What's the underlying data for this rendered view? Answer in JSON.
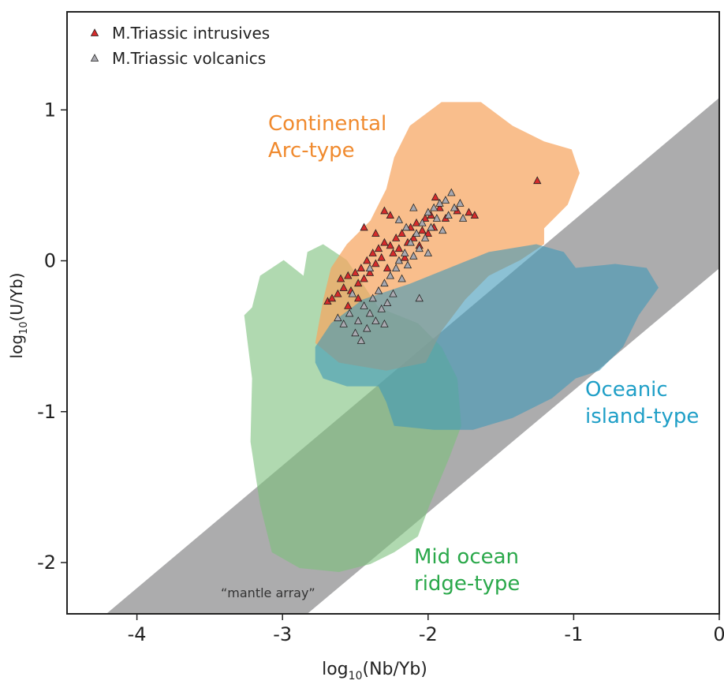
{
  "chart_data": {
    "type": "scatter",
    "x_label": [
      "log",
      "10",
      "(Nb/Yb)"
    ],
    "y_label": [
      "log",
      "10",
      "(U/Yb)"
    ],
    "xlim": [
      -4.48,
      0
    ],
    "ylim": [
      -2.34,
      1.65
    ],
    "xticks": [
      -4,
      -3,
      -2,
      -1,
      0
    ],
    "yticks": [
      -2,
      -1,
      0,
      1
    ],
    "legend": "upper left",
    "regions": [
      {
        "label": [
          "“mantle array”"
        ],
        "color": "#9d9d9f",
        "label_color": "#333333",
        "x": [
          -4.21,
          -2.83,
          0,
          0
        ],
        "y": [
          -2.34,
          -2.34,
          -0.05,
          1.08
        ]
      },
      {
        "label": [
          "Mid ocean",
          "ridge-type"
        ],
        "color": "#7cc07b",
        "label_color": "#2aa84a",
        "x": [
          -3.209,
          -3.154,
          -2.992,
          -2.856,
          -2.829,
          -2.721,
          -2.558,
          -2.341,
          -2.07,
          -1.908,
          -1.799,
          -1.772,
          -1.854,
          -1.989,
          -2.07,
          -2.233,
          -2.396,
          -2.612,
          -2.883,
          -3.073,
          -3.154,
          -3.22,
          -3.209,
          -3.236,
          -3.263
        ],
        "y": [
          -0.309,
          -0.099,
          0.005,
          -0.099,
          0.058,
          0.11,
          0.005,
          -0.309,
          -0.414,
          -0.571,
          -0.78,
          -1.094,
          -1.304,
          -1.618,
          -1.827,
          -1.932,
          -2.01,
          -2.063,
          -2.037,
          -1.932,
          -1.618,
          -1.199,
          -0.78,
          -0.571,
          -0.361
        ]
      },
      {
        "label": [
          "Continental",
          "Arc-type"
        ],
        "color": "#f6a55f",
        "label_color": "#f08a2e",
        "x": [
          -2.775,
          -2.72,
          -2.667,
          -2.558,
          -2.396,
          -2.287,
          -2.233,
          -2.125,
          -1.908,
          -1.637,
          -1.42,
          -1.203,
          -1.014,
          -0.959,
          -1.041,
          -1.203,
          -1.203,
          -1.366,
          -1.583,
          -1.745,
          -1.908,
          -2.016,
          -2.287,
          -2.612
        ],
        "y": [
          -0.545,
          -0.257,
          -0.047,
          0.11,
          0.267,
          0.476,
          0.686,
          0.895,
          1.052,
          1.052,
          0.895,
          0.791,
          0.738,
          0.581,
          0.372,
          0.215,
          0.11,
          0.005,
          -0.099,
          -0.257,
          -0.466,
          -0.675,
          -0.728,
          -0.675
        ]
      },
      {
        "label": [
          "Oceanic",
          "island-type"
        ],
        "color": "#3f97b8",
        "label_color": "#1f9fc7",
        "x": [
          -2.775,
          -2.667,
          -2.45,
          -2.125,
          -1.854,
          -1.583,
          -1.257,
          -1.068,
          -0.986,
          -0.715,
          -0.499,
          -0.417,
          -0.553,
          -0.661,
          -0.824,
          -0.986,
          -1.149,
          -1.42,
          -1.691,
          -1.962,
          -2.233,
          -2.287,
          -2.341,
          -2.558,
          -2.721,
          -2.775
        ],
        "y": [
          -0.571,
          -0.414,
          -0.257,
          -0.152,
          -0.047,
          0.058,
          0.11,
          0.058,
          -0.047,
          -0.021,
          -0.047,
          -0.178,
          -0.361,
          -0.571,
          -0.728,
          -0.78,
          -0.911,
          -1.042,
          -1.12,
          -1.12,
          -1.094,
          -0.937,
          -0.832,
          -0.832,
          -0.78,
          -0.675
        ]
      }
    ],
    "series": [
      {
        "name": "M.Triassic intrusives",
        "color": "#d62b2b",
        "x": [
          -2.69,
          -2.66,
          -2.62,
          -2.6,
          -2.58,
          -2.55,
          -2.53,
          -2.5,
          -2.48,
          -2.46,
          -2.44,
          -2.42,
          -2.4,
          -2.38,
          -2.36,
          -2.34,
          -2.32,
          -2.3,
          -2.28,
          -2.26,
          -2.24,
          -2.22,
          -2.2,
          -2.18,
          -2.16,
          -2.14,
          -2.12,
          -2.1,
          -2.08,
          -2.06,
          -2.04,
          -2.02,
          -2.0,
          -1.98,
          -1.96,
          -1.92,
          -1.88,
          -1.8,
          -1.72,
          -1.68,
          -2.3,
          -2.26,
          -2.44,
          -2.36,
          -2.55,
          -2.48,
          -1.95,
          -1.25
        ],
        "y": [
          -0.27,
          -0.25,
          -0.22,
          -0.12,
          -0.18,
          -0.1,
          -0.2,
          -0.08,
          -0.15,
          -0.05,
          -0.12,
          0.0,
          -0.08,
          0.05,
          -0.02,
          0.08,
          0.02,
          0.12,
          -0.05,
          0.1,
          0.05,
          0.15,
          0.08,
          0.18,
          0.02,
          0.12,
          0.22,
          0.15,
          0.25,
          0.1,
          0.2,
          0.28,
          0.18,
          0.3,
          0.22,
          0.35,
          0.28,
          0.33,
          0.32,
          0.3,
          0.33,
          0.3,
          0.22,
          0.18,
          -0.3,
          -0.25,
          0.42,
          0.53
        ]
      },
      {
        "name": "M.Triassic volcanics",
        "color": "#a9a9b0",
        "x": [
          -2.62,
          -2.58,
          -2.54,
          -2.5,
          -2.48,
          -2.46,
          -2.44,
          -2.42,
          -2.4,
          -2.38,
          -2.36,
          -2.34,
          -2.32,
          -2.3,
          -2.28,
          -2.26,
          -2.24,
          -2.22,
          -2.2,
          -2.18,
          -2.16,
          -2.14,
          -2.12,
          -2.1,
          -2.08,
          -2.06,
          -2.04,
          -2.02,
          -2.0,
          -1.98,
          -1.96,
          -1.94,
          -1.92,
          -1.9,
          -1.88,
          -1.86,
          -1.84,
          -1.82,
          -1.78,
          -1.76,
          -2.2,
          -2.1,
          -2.06,
          -2.4,
          -2.52,
          -2.0,
          -2.3,
          -2.15
        ],
        "y": [
          -0.38,
          -0.42,
          -0.35,
          -0.48,
          -0.4,
          -0.53,
          -0.3,
          -0.45,
          -0.35,
          -0.25,
          -0.4,
          -0.2,
          -0.32,
          -0.15,
          -0.28,
          -0.1,
          -0.22,
          -0.05,
          0.0,
          -0.12,
          0.05,
          -0.03,
          0.12,
          0.03,
          0.18,
          0.08,
          0.25,
          0.15,
          0.32,
          0.22,
          0.35,
          0.28,
          0.38,
          0.2,
          0.4,
          0.3,
          0.45,
          0.35,
          0.38,
          0.28,
          0.27,
          0.35,
          -0.25,
          -0.05,
          -0.22,
          0.05,
          -0.42,
          0.22
        ]
      }
    ]
  }
}
